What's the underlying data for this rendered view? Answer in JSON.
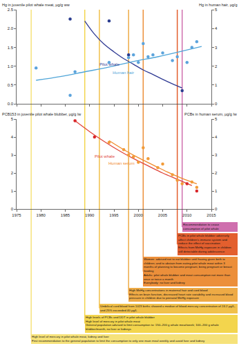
{
  "chart_data": [
    {
      "type": "scatter",
      "ylabel": "Hg in juvenile pilot whale meat, µg/g ww",
      "y2label": "Hg in human hair, µg/g",
      "xlim": [
        1975,
        2015
      ],
      "xticks": [
        1975,
        1980,
        1985,
        1990,
        1995,
        2000,
        2005,
        2010,
        2015
      ],
      "ylim": [
        0,
        2.5
      ],
      "yticks": [
        {
          "value": 0,
          "label": "0.0"
        },
        {
          "value": 0.5,
          "label": "0.5"
        },
        {
          "value": 1,
          "label": "1.0"
        },
        {
          "value": 1.5,
          "label": "1.5"
        },
        {
          "value": 2,
          "label": "2.0"
        },
        {
          "value": 2.5,
          "label": "2.5"
        }
      ],
      "y2lim": [
        0,
        5
      ],
      "y2ticks": [
        0,
        1,
        2,
        3,
        4,
        5
      ],
      "tick_labels": "y",
      "grid": false,
      "series": [
        {
          "name": "Human hair",
          "type": "line",
          "line_style": "solid",
          "axis": "y2",
          "color": "#4fa5d8",
          "x": [
            1979,
            1984,
            1989,
            1994,
            1999,
            2004,
            2009,
            2013
          ],
          "values": [
            1.25,
            1.45,
            1.7,
            1.95,
            2.25,
            2.5,
            2.8,
            3.05
          ]
        },
        {
          "name": "Pilot whale",
          "type": "line",
          "line_style": "solid",
          "axis": "y",
          "color": "#2f3a93",
          "x": [
            1989,
            1991,
            1993,
            1995,
            1997,
            1999,
            2001,
            2003,
            2005,
            2007,
            2009
          ],
          "values": [
            2.2,
            1.85,
            1.58,
            1.38,
            1.2,
            1.05,
            0.9,
            0.78,
            0.65,
            0.53,
            0.42
          ]
        },
        {
          "type": "scatter",
          "marker": "circle",
          "axis": "y2",
          "color": "#5ba3dc",
          "x": [
            1979,
            1986,
            1987,
            1994,
            1998,
            1999,
            2000,
            2001,
            2002,
            2003,
            2005,
            2007,
            2008,
            2010,
            2011,
            2012
          ],
          "values": [
            1.9,
            0.45,
            1.7,
            2.2,
            2.45,
            2.6,
            2.2,
            3.2,
            2.5,
            2.6,
            2.7,
            2.3,
            2.5,
            2.2,
            3.0,
            3.3
          ]
        },
        {
          "type": "scatter",
          "marker": "circle",
          "axis": "y",
          "color": "#2a3c8f",
          "x": [
            1986,
            1994,
            1998,
            2009
          ],
          "values": [
            2.25,
            2.2,
            1.3,
            0.35
          ]
        }
      ]
    },
    {
      "type": "scatter",
      "ylabel": "PCB153 in juvenile pilot whale blubber, µg/g lw",
      "y2label": "PCBs in human serum, µg/g lw",
      "xlim": [
        1975,
        2015
      ],
      "xticks": [
        1975,
        1980,
        1985,
        1990,
        1995,
        2000,
        2005,
        2010,
        2015
      ],
      "ylim": [
        0,
        5
      ],
      "yticks": [
        0,
        1,
        2,
        3,
        4,
        5
      ],
      "y2lim": [
        0,
        5
      ],
      "y2ticks": [
        0,
        1,
        2,
        3,
        4,
        5
      ],
      "grid": false,
      "series": [
        {
          "name": "Human serum",
          "type": "line",
          "line_style": "solid",
          "axis": "y2",
          "color": "#f08a2a",
          "x": [
            1994,
            1997,
            2000,
            2003,
            2006,
            2009,
            2012
          ],
          "values": [
            3.8,
            3.3,
            2.85,
            2.45,
            2.05,
            1.7,
            1.4
          ]
        },
        {
          "name": "Pilot whale",
          "type": "line",
          "line_style": "solid",
          "axis": "y",
          "color": "#e0453a",
          "x": [
            1987,
            1990,
            1993,
            1996,
            1999,
            2002,
            2005,
            2008,
            2011
          ],
          "values": [
            4.9,
            4.3,
            3.75,
            3.25,
            2.8,
            2.4,
            2.0,
            1.65,
            1.3
          ]
        },
        {
          "type": "scatter",
          "marker": "circle",
          "axis": "y2",
          "color": "#f29b38",
          "x": [
            1994,
            1997,
            1998,
            1999,
            2000,
            2001,
            2002,
            2004,
            2005,
            2007,
            2008,
            2009,
            2011,
            2012
          ],
          "values": [
            3.7,
            3.3,
            3.0,
            2.9,
            2.6,
            3.4,
            2.8,
            2.3,
            2.5,
            1.9,
            1.6,
            1.4,
            1.5,
            1.2
          ]
        },
        {
          "type": "scatter",
          "marker": "circle",
          "axis": "y",
          "color": "#d9262a",
          "x": [
            1987,
            1991,
            2010,
            2012
          ],
          "values": [
            4.9,
            4.0,
            1.4,
            1.0
          ]
        }
      ]
    }
  ],
  "timeline": [
    {
      "year": 1978,
      "color": "#f6e27a",
      "text": [
        "High level of mercury in pilot whale meat, kidney and liver",
        "First recommendation to the general population to limit the consumption to only one main meal weekly and avoid liver and kidney"
      ]
    },
    {
      "year": 1989,
      "color": "#f3d54d",
      "text": [
        "High levels of PCBs and DDT in pilot whale blubber",
        "High level of mercury in pilot whale meat",
        "General population advised to limit consumption to: 150–200 g whale meat/week; 100–200 g whale blubber/month, no liver or kidneys"
      ]
    },
    {
      "year": 1992,
      "color": "#f1c04a",
      "text": [
        "Umbilical cord blood from 1023 births showed a median of blood-mercury concentration of 24.2 µg/L, and 25% exceeded 40 µg/L"
      ]
    },
    {
      "year": 1998,
      "color": "#eeaa45",
      "text": [
        "High MeHg concentrations in maternal hair and cord blood",
        "Effects on brain function, decreased heart rate variability and increased blood pressure in children due to prenatal MeHg exposure"
      ]
    },
    {
      "year": 2001,
      "color": "#ec8f3a",
      "text": [
        "Women: advised not to eat blubber until having given birth to children; and to abstain from eating pilot whale meat within 3 months of planning to become pregnant, being pregnant or breast feeding",
        "Adults: pilot whale blubber and meat consumption not more than once or twice a month",
        "Everybody: no liver and kidney"
      ]
    },
    {
      "year": 2008,
      "color": "#e35f2e",
      "text": [
        "PCBs in pilot whale blubber adversely affect children's immune system and reduce the effect of vaccination",
        "Effects from MeHg exposure in children still detectable during adolescence"
      ]
    },
    {
      "year": 2009,
      "color": "#cf6fae",
      "text": [
        "Recommendation to cease consumption of pilot whale"
      ]
    }
  ]
}
